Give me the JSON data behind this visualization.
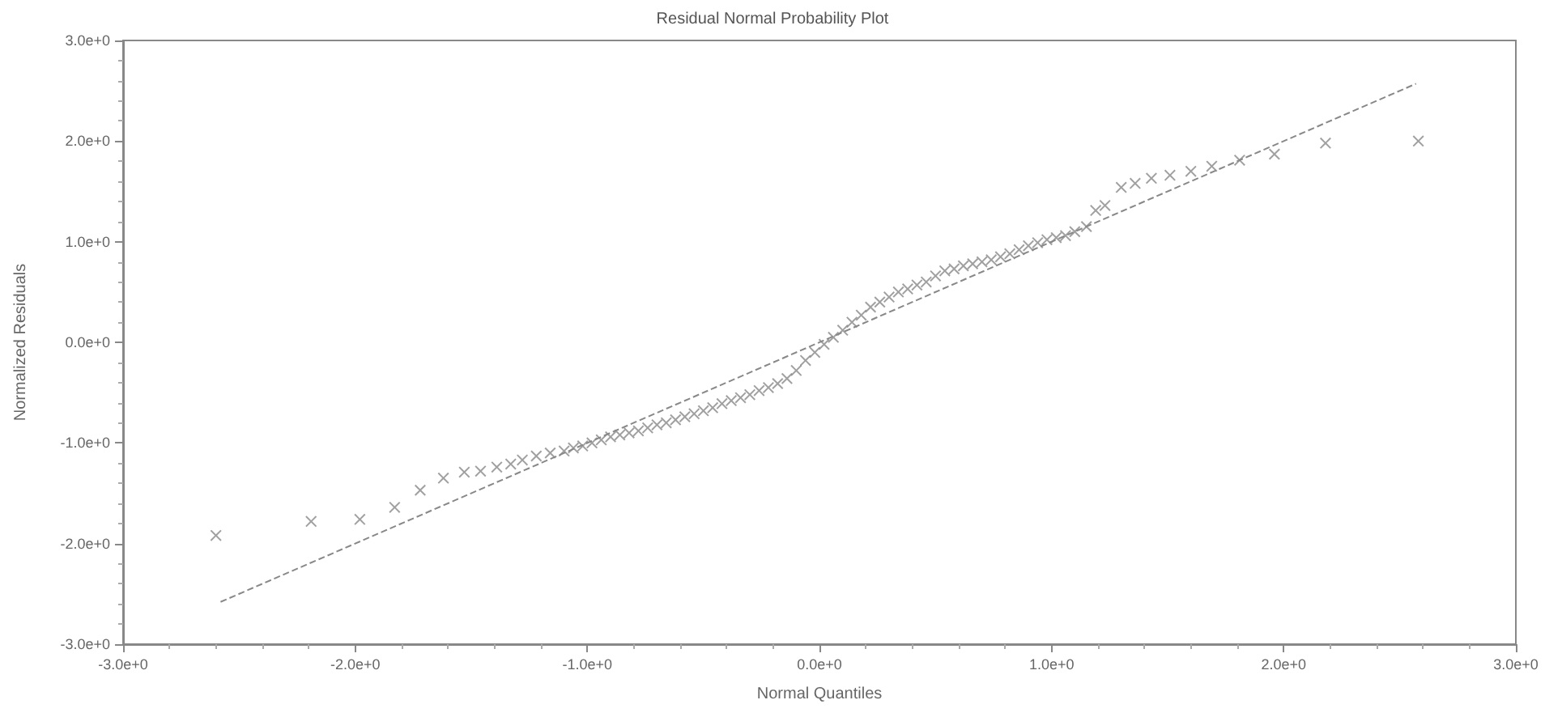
{
  "chart_data": {
    "type": "scatter",
    "title": "Residual Normal Probability Plot",
    "xlabel": "Normal Quantiles",
    "ylabel": "Normalized Residuals",
    "xlim": [
      -3,
      3
    ],
    "ylim": [
      -3,
      3
    ],
    "xticks": [
      {
        "value": -3,
        "label": "-3.0e+0"
      },
      {
        "value": -2,
        "label": "-2.0e+0"
      },
      {
        "value": -1,
        "label": "-1.0e+0"
      },
      {
        "value": 0,
        "label": "0.0e+0"
      },
      {
        "value": 1,
        "label": "1.0e+0"
      },
      {
        "value": 2,
        "label": "2.0e+0"
      },
      {
        "value": 3,
        "label": "3.0e+0"
      }
    ],
    "yticks": [
      {
        "value": -3,
        "label": "-3.0e+0"
      },
      {
        "value": -2,
        "label": "-2.0e+0"
      },
      {
        "value": -1,
        "label": "-1.0e+0"
      },
      {
        "value": 0,
        "label": "0.0e+0"
      },
      {
        "value": 1,
        "label": "1.0e+0"
      },
      {
        "value": 2,
        "label": "2.0e+0"
      },
      {
        "value": 3,
        "label": "3.0e+0"
      }
    ],
    "grid": false,
    "series": [
      {
        "marker": "cross",
        "color": "#888888",
        "x": [
          -2.6,
          -2.19,
          -1.98,
          -1.83,
          -1.72,
          -1.62,
          -1.53,
          -1.46,
          -1.39,
          -1.33,
          -1.28,
          -1.22,
          -1.16,
          -1.1,
          -1.06,
          -1.02,
          -0.98,
          -0.94,
          -0.9,
          -0.86,
          -0.82,
          -0.78,
          -0.74,
          -0.7,
          -0.66,
          -0.62,
          -0.58,
          -0.54,
          -0.5,
          -0.46,
          -0.42,
          -0.38,
          -0.34,
          -0.3,
          -0.26,
          -0.22,
          -0.18,
          -0.14,
          -0.1,
          -0.06,
          -0.02,
          0.02,
          0.06,
          0.1,
          0.14,
          0.18,
          0.22,
          0.26,
          0.3,
          0.34,
          0.38,
          0.42,
          0.46,
          0.5,
          0.54,
          0.58,
          0.62,
          0.66,
          0.7,
          0.74,
          0.78,
          0.82,
          0.86,
          0.9,
          0.94,
          0.98,
          1.02,
          1.06,
          1.1,
          1.15,
          1.19,
          1.23,
          1.3,
          1.36,
          1.43,
          1.51,
          1.6,
          1.69,
          1.81,
          1.96,
          2.18,
          2.58
        ],
        "values": [
          -1.92,
          -1.78,
          -1.76,
          -1.64,
          -1.47,
          -1.35,
          -1.29,
          -1.28,
          -1.24,
          -1.21,
          -1.17,
          -1.13,
          -1.1,
          -1.08,
          -1.05,
          -1.03,
          -1.0,
          -0.97,
          -0.94,
          -0.92,
          -0.9,
          -0.88,
          -0.85,
          -0.82,
          -0.8,
          -0.77,
          -0.74,
          -0.71,
          -0.68,
          -0.65,
          -0.61,
          -0.58,
          -0.55,
          -0.52,
          -0.48,
          -0.45,
          -0.41,
          -0.36,
          -0.28,
          -0.18,
          -0.1,
          -0.02,
          0.05,
          0.12,
          0.2,
          0.27,
          0.35,
          0.4,
          0.45,
          0.5,
          0.53,
          0.57,
          0.6,
          0.66,
          0.71,
          0.73,
          0.76,
          0.78,
          0.8,
          0.82,
          0.85,
          0.88,
          0.92,
          0.96,
          0.99,
          1.02,
          1.04,
          1.06,
          1.1,
          1.15,
          1.31,
          1.36,
          1.54,
          1.58,
          1.63,
          1.66,
          1.7,
          1.75,
          1.81,
          1.87,
          1.98,
          2.0
        ]
      },
      {
        "type": "line",
        "marker": "none",
        "line_style": "dashed",
        "color": "#888888",
        "x": [
          -2.58,
          2.57
        ],
        "values": [
          -2.58,
          2.57
        ]
      }
    ]
  }
}
